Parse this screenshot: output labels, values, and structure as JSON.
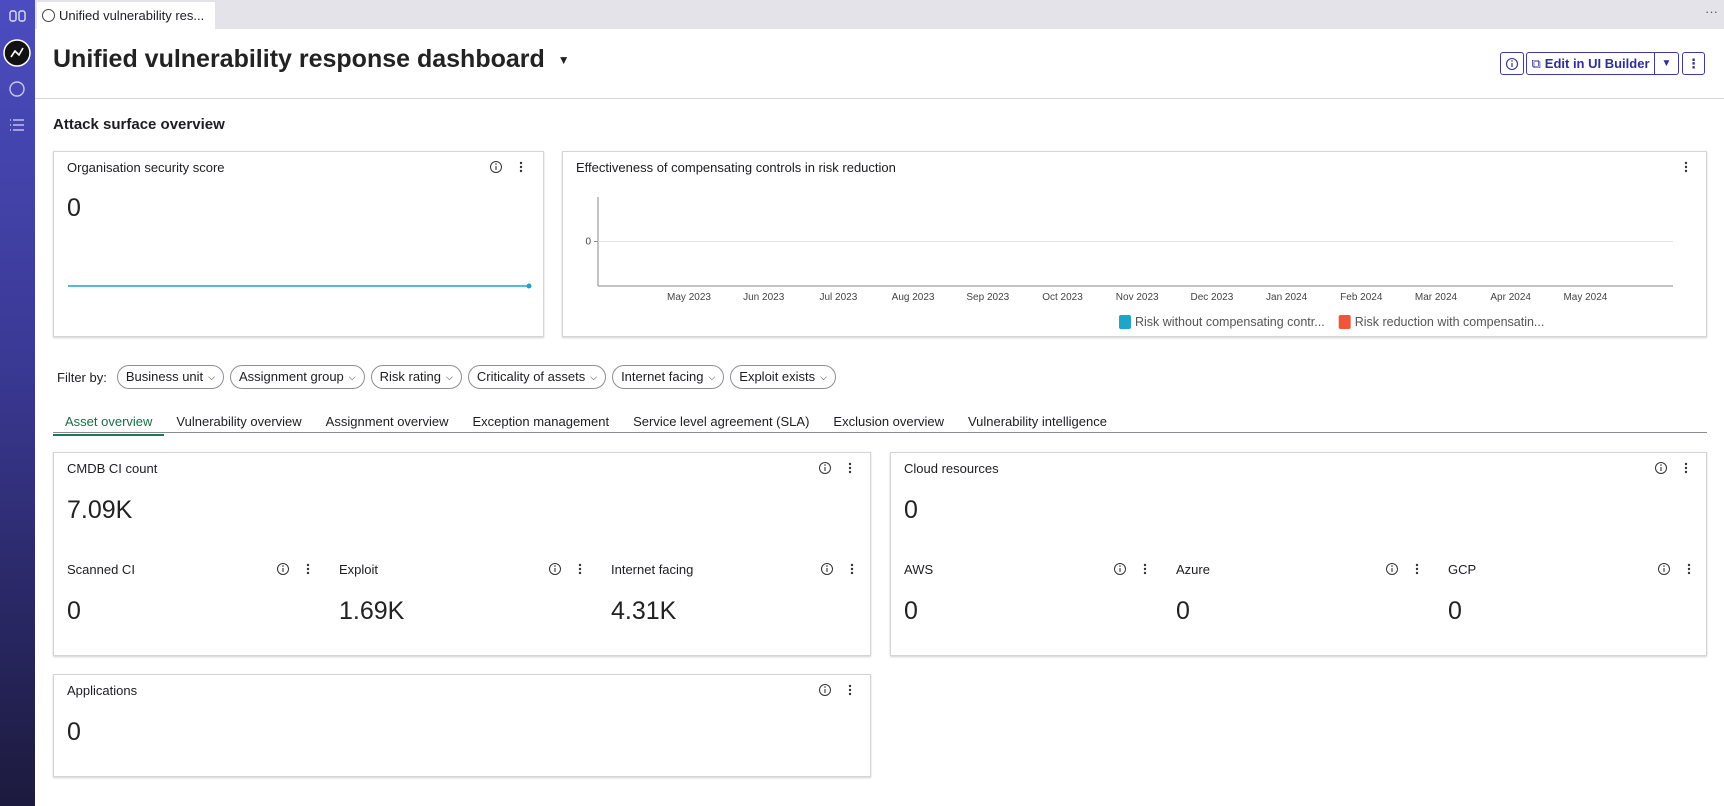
{
  "browser_tab": "Unified vulnerability res...",
  "header": {
    "title": "Unified vulnerability response dashboard",
    "edit_button": "Edit in UI Builder"
  },
  "section_title": "Attack surface overview",
  "score_card": {
    "title": "Organisation security score",
    "value": "0"
  },
  "effectiveness_chart": {
    "title": "Effectiveness of compensating controls in risk reduction",
    "yticks": [
      0
    ],
    "categories": [
      "May 2023",
      "Jun 2023",
      "Jul 2023",
      "Aug 2023",
      "Sep 2023",
      "Oct 2023",
      "Nov 2023",
      "Dec 2023",
      "Jan 2024",
      "Feb 2024",
      "Mar 2024",
      "Apr 2024",
      "May 2024"
    ],
    "series": [
      {
        "name": "Risk without compensating contr...",
        "color": "#1ea5c8"
      },
      {
        "name": "Risk reduction with compensatin...",
        "color": "#f0553a"
      }
    ]
  },
  "filters": {
    "label": "Filter by:",
    "items": [
      "Business unit",
      "Assignment group",
      "Risk rating",
      "Criticality of assets",
      "Internet facing",
      "Exploit exists"
    ]
  },
  "tabs": {
    "items": [
      "Asset overview",
      "Vulnerability overview",
      "Assignment overview",
      "Exception management",
      "Service level agreement (SLA)",
      "Exclusion overview",
      "Vulnerability intelligence"
    ],
    "active": 0
  },
  "asset_cards": [
    {
      "title": "CMDB CI count",
      "value": "7.09K",
      "metrics": [
        {
          "title": "Scanned CI",
          "value": "0"
        },
        {
          "title": "Exploit",
          "value": "1.69K"
        },
        {
          "title": "Internet facing",
          "value": "4.31K"
        }
      ]
    },
    {
      "title": "Cloud resources",
      "value": "0",
      "metrics": [
        {
          "title": "AWS",
          "value": "0"
        },
        {
          "title": "Azure",
          "value": "0"
        },
        {
          "title": "GCP",
          "value": "0"
        }
      ]
    },
    {
      "title": "Applications",
      "value": "0"
    }
  ]
}
